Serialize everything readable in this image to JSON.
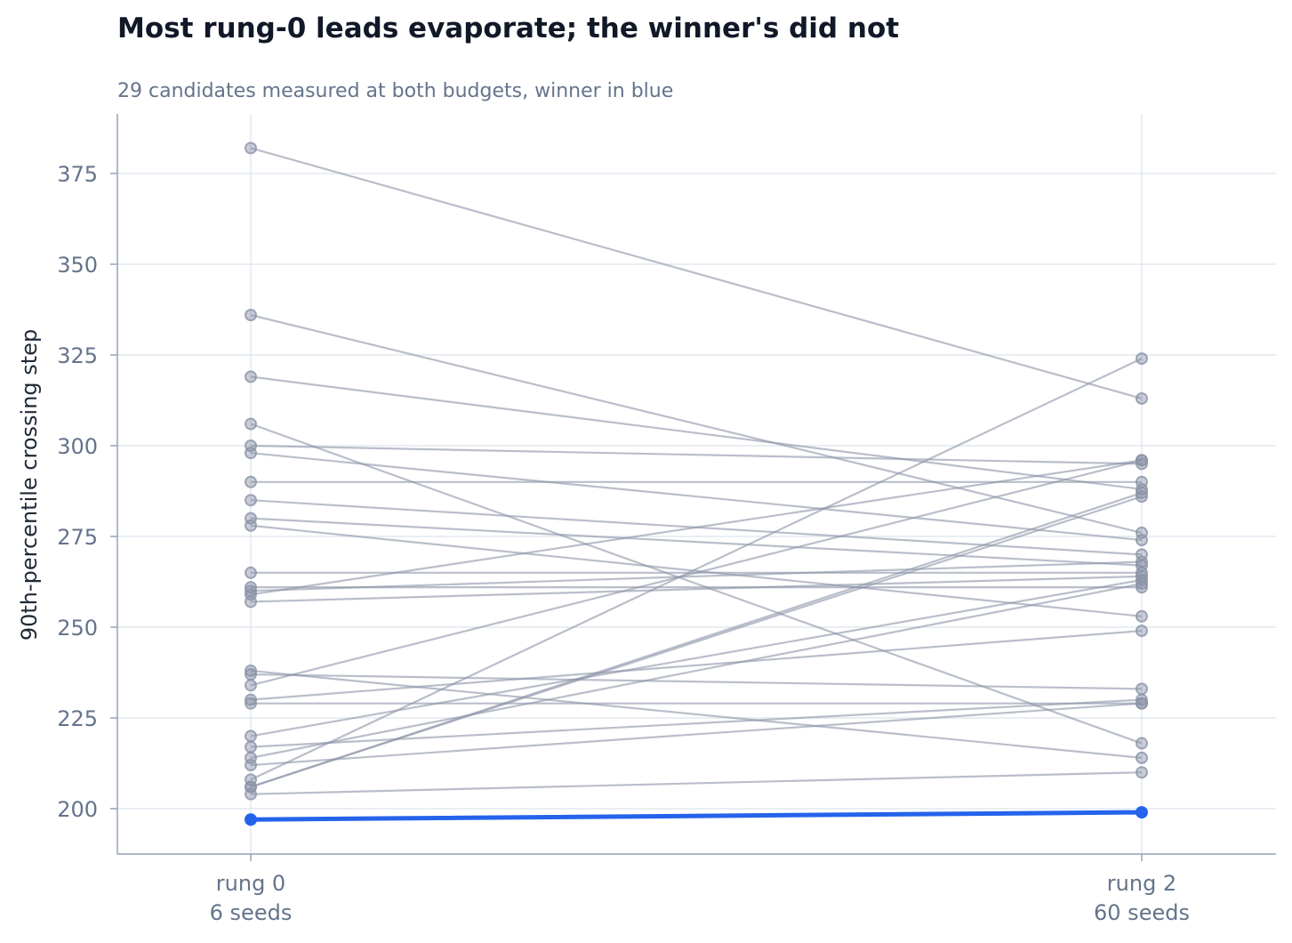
{
  "chart_data": {
    "type": "line",
    "title": "Most rung-0 leads evaporate; the winner's did not",
    "subtitle": "29 candidates measured at both budgets, winner in blue",
    "ylabel": "90th-percentile crossing step",
    "xlabel": "",
    "categories": [
      {
        "line1": "rung 0",
        "line2": "6 seeds"
      },
      {
        "line1": "rung 2",
        "line2": "60 seeds"
      }
    ],
    "ylim": [
      188,
      392
    ],
    "yticks": [
      200,
      225,
      250,
      275,
      300,
      325,
      350,
      375
    ],
    "grid": true,
    "series": [
      {
        "values": [
          382,
          313
        ]
      },
      {
        "values": [
          336,
          276
        ]
      },
      {
        "values": [
          319,
          288
        ]
      },
      {
        "values": [
          306,
          218
        ]
      },
      {
        "values": [
          300,
          295
        ]
      },
      {
        "values": [
          298,
          274
        ]
      },
      {
        "values": [
          290,
          290
        ]
      },
      {
        "values": [
          285,
          270
        ]
      },
      {
        "values": [
          280,
          267
        ]
      },
      {
        "values": [
          278,
          253
        ]
      },
      {
        "values": [
          265,
          265
        ]
      },
      {
        "values": [
          261,
          261
        ]
      },
      {
        "values": [
          260,
          268
        ]
      },
      {
        "values": [
          259,
          296
        ]
      },
      {
        "values": [
          257,
          264
        ]
      },
      {
        "values": [
          238,
          214
        ]
      },
      {
        "values": [
          237,
          233
        ]
      },
      {
        "values": [
          234,
          296
        ]
      },
      {
        "values": [
          230,
          249
        ]
      },
      {
        "values": [
          229,
          229
        ]
      },
      {
        "values": [
          220,
          263
        ]
      },
      {
        "values": [
          217,
          230
        ]
      },
      {
        "values": [
          214,
          262
        ]
      },
      {
        "values": [
          212,
          229
        ]
      },
      {
        "values": [
          208,
          324
        ]
      },
      {
        "values": [
          206,
          287
        ]
      },
      {
        "values": [
          206,
          286
        ]
      },
      {
        "values": [
          204,
          210
        ]
      },
      {
        "values": [
          197,
          199
        ],
        "highlight": true
      }
    ],
    "colors": {
      "muted": "#8a93a6",
      "winner": "#2563eb",
      "grid": "#e2e8f0",
      "axis": "#94a3b8"
    }
  }
}
